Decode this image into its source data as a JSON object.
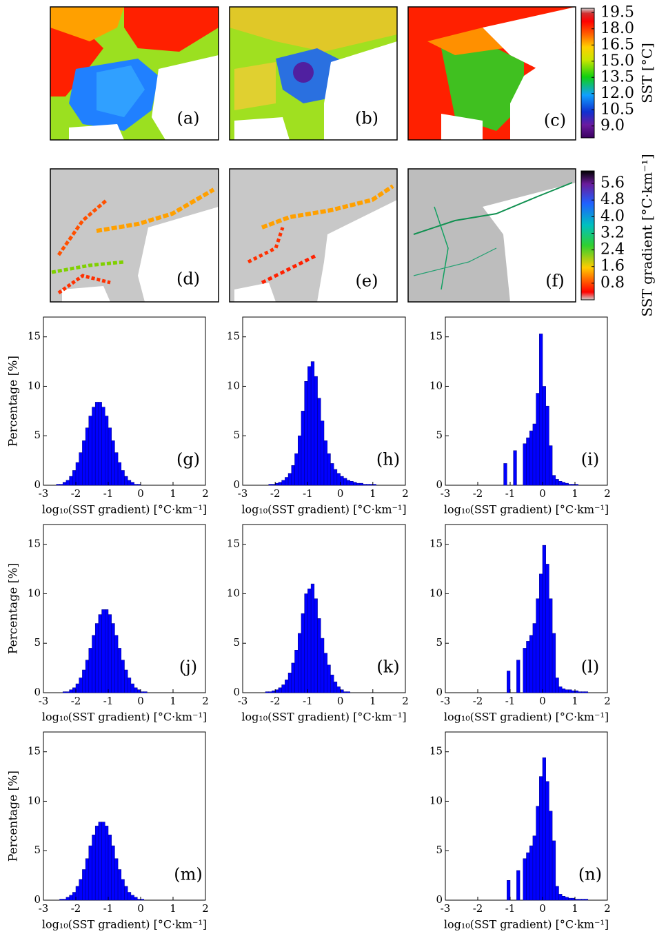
{
  "panels": [
    "(a)",
    "(b)",
    "(c)",
    "(d)",
    "(e)",
    "(f)"
  ],
  "chart_data": [
    {
      "type": "colorbar",
      "label": "SST [°C]",
      "ylim": [
        7.9,
        19.9
      ],
      "yticks": [
        19.5,
        {
          "value": 18,
          "label": "18.0"
        },
        16.5,
        {
          "value": 15,
          "label": "15.0"
        },
        13.5,
        {
          "value": 12,
          "label": "12.0"
        },
        10.5,
        {
          "value": 9,
          "label": "9.0"
        }
      ]
    },
    {
      "type": "colorbar",
      "label": "SST gradient [°C·km⁻¹]",
      "ylim": [
        0,
        6.2
      ],
      "yticks": [
        5.6,
        4.8,
        {
          "value": 4,
          "label": "4.0"
        },
        3.2,
        2.4,
        1.6,
        0.8
      ]
    },
    {
      "type": "histogram",
      "annotation": "(g)",
      "ylabel": "Percentage [%]",
      "xlabel": "log₁₀(SST gradient) [°C·km⁻¹]",
      "color": "#0000ff",
      "xlim": [
        -3,
        2
      ],
      "ylim": [
        0,
        17
      ],
      "xticks": [
        -3,
        -2,
        -1,
        0,
        1,
        2
      ],
      "yticks": [
        0,
        5,
        10,
        15
      ],
      "bins": [
        -2.6,
        -2.5,
        -2.4,
        -2.3,
        -2.2,
        -2.1,
        -2.0,
        -1.9,
        -1.8,
        -1.7,
        -1.6,
        -1.5,
        -1.4,
        -1.3,
        -1.2,
        -1.1,
        -1.0,
        -0.9,
        -0.8,
        -0.7,
        -0.6,
        -0.5,
        -0.4,
        -0.3,
        -0.2,
        -0.1,
        0.0
      ],
      "values": [
        0.1,
        0.1,
        0.3,
        0.5,
        0.9,
        1.5,
        2.3,
        3.3,
        4.5,
        5.8,
        7,
        7.9,
        8.4,
        8.4,
        7.9,
        7,
        5.8,
        4.5,
        3.3,
        2.3,
        1.5,
        0.9,
        0.5,
        0.3,
        0.1,
        0.1
      ]
    },
    {
      "type": "histogram",
      "annotation": "(h)",
      "xlabel": "log₁₀(SST gradient) [°C·km⁻¹]",
      "color": "#0000ff",
      "xlim": [
        -3,
        2
      ],
      "ylim": [
        0,
        17
      ],
      "xticks": [
        -3,
        -2,
        -1,
        0,
        1,
        2
      ],
      "yticks": [
        0,
        5,
        10,
        15
      ],
      "bins": [
        -2.2,
        -2.1,
        -2.0,
        -1.9,
        -1.8,
        -1.7,
        -1.6,
        -1.5,
        -1.4,
        -1.3,
        -1.2,
        -1.1,
        -1.0,
        -0.9,
        -0.8,
        -0.7,
        -0.6,
        -0.5,
        -0.4,
        -0.3,
        -0.2,
        -0.1,
        0.0,
        0.1,
        0.2,
        0.3,
        0.4,
        0.5,
        0.6,
        0.7,
        0.8,
        0.9,
        1.0,
        1.1
      ],
      "values": [
        0.1,
        0.1,
        0.2,
        0.3,
        0.5,
        0.8,
        1.2,
        2,
        3.2,
        5,
        7.5,
        10.5,
        12,
        12.5,
        11,
        8.8,
        6.5,
        4.5,
        3.2,
        2.2,
        1.6,
        1.2,
        0.9,
        0.7,
        0.5,
        0.4,
        0.3,
        0.2,
        0.2,
        0.1,
        0.1,
        0.1,
        0.1
      ]
    },
    {
      "type": "histogram",
      "annotation": "(i)",
      "xlabel": "log₁₀(SST gradient) [°C·km⁻¹]",
      "color": "#0000ff",
      "xlim": [
        -3,
        2
      ],
      "ylim": [
        0,
        17
      ],
      "xticks": [
        -3,
        -2,
        -1,
        0,
        1,
        2
      ],
      "yticks": [
        0,
        5,
        10,
        15
      ],
      "bins": [
        -1.2,
        -1.1,
        -1.0,
        -0.9,
        -0.8,
        -0.7,
        -0.6,
        -0.5,
        -0.4,
        -0.3,
        -0.2,
        -0.1,
        0.0,
        0.1,
        0.2,
        0.3,
        0.4,
        0.5,
        0.6,
        0.7,
        0.8,
        0.9,
        1.0,
        1.1
      ],
      "values": [
        2.2,
        0,
        0,
        3.5,
        0,
        0,
        4.2,
        4.8,
        5.5,
        6.2,
        9.3,
        15.3,
        10,
        8,
        4,
        1,
        0.6,
        0.4,
        0.3,
        0.2,
        0.1,
        0.1,
        0.1
      ]
    },
    {
      "type": "histogram",
      "annotation": "(j)",
      "ylabel": "Percentage [%]",
      "xlabel": "log₁₀(SST gradient) [°C·km⁻¹]",
      "color": "#0000ff",
      "xlim": [
        -3,
        2
      ],
      "ylim": [
        0,
        17
      ],
      "xticks": [
        -3,
        -2,
        -1,
        0,
        1,
        2
      ],
      "yticks": [
        0,
        5,
        10,
        15
      ],
      "bins": [
        -2.4,
        -2.3,
        -2.2,
        -2.1,
        -2.0,
        -1.9,
        -1.8,
        -1.7,
        -1.6,
        -1.5,
        -1.4,
        -1.3,
        -1.2,
        -1.1,
        -1.0,
        -0.9,
        -0.8,
        -0.7,
        -0.6,
        -0.5,
        -0.4,
        -0.3,
        -0.2,
        -0.1,
        0.0,
        0.1,
        0.2
      ],
      "values": [
        0.1,
        0.1,
        0.3,
        0.5,
        0.9,
        1.5,
        2.3,
        3.3,
        4.5,
        5.8,
        7,
        7.9,
        8.4,
        8.4,
        7.9,
        7,
        5.8,
        4.5,
        3.3,
        2.3,
        1.5,
        0.9,
        0.5,
        0.3,
        0.1,
        0.1
      ]
    },
    {
      "type": "histogram",
      "annotation": "(k)",
      "xlabel": "log₁₀(SST gradient) [°C·km⁻¹]",
      "color": "#0000ff",
      "xlim": [
        -3,
        2
      ],
      "ylim": [
        0,
        17
      ],
      "xticks": [
        -3,
        -2,
        -1,
        0,
        1,
        2
      ],
      "yticks": [
        0,
        5,
        10,
        15
      ],
      "bins": [
        -2.3,
        -2.2,
        -2.1,
        -2.0,
        -1.9,
        -1.8,
        -1.7,
        -1.6,
        -1.5,
        -1.4,
        -1.3,
        -1.2,
        -1.1,
        -1.0,
        -0.9,
        -0.8,
        -0.7,
        -0.6,
        -0.5,
        -0.4,
        -0.3,
        -0.2,
        -0.1,
        0.0,
        0.1,
        0.2,
        0.3
      ],
      "values": [
        0.1,
        0.1,
        0.2,
        0.3,
        0.5,
        0.8,
        1.3,
        2,
        3,
        4.3,
        6,
        8,
        10,
        10.5,
        11,
        9.5,
        7.5,
        5.5,
        4,
        2.8,
        1.8,
        1.1,
        0.6,
        0.3,
        0.1,
        0.1
      ]
    },
    {
      "type": "histogram",
      "annotation": "(l)",
      "xlabel": "log₁₀(SST gradient) [°C·km⁻¹]",
      "color": "#0000ff",
      "xlim": [
        -3,
        2
      ],
      "ylim": [
        0,
        17
      ],
      "xticks": [
        -3,
        -2,
        -1,
        0,
        1,
        2
      ],
      "yticks": [
        0,
        5,
        10,
        15
      ],
      "bins": [
        -1.1,
        -1.0,
        -0.9,
        -0.8,
        -0.7,
        -0.6,
        -0.5,
        -0.4,
        -0.3,
        -0.2,
        -0.1,
        0.0,
        0.1,
        0.2,
        0.3,
        0.4,
        0.5,
        0.6,
        0.7,
        0.8,
        0.9,
        1.0,
        1.1,
        1.2,
        1.3,
        1.4
      ],
      "values": [
        2.2,
        0,
        0,
        3.3,
        0,
        4.5,
        5.2,
        5.8,
        7,
        9.5,
        12,
        14.9,
        13,
        9.5,
        6,
        1.5,
        0.6,
        0.4,
        0.3,
        0.3,
        0.2,
        0.2,
        0.1,
        0.1,
        0.1
      ]
    },
    {
      "type": "histogram",
      "annotation": "(m)",
      "ylabel": "Percentage [%]",
      "xlabel": "log₁₀(SST gradient) [°C·km⁻¹]",
      "color": "#0000ff",
      "xlim": [
        -3,
        2
      ],
      "ylim": [
        0,
        17
      ],
      "xticks": [
        -3,
        -2,
        -1,
        0,
        1,
        2
      ],
      "yticks": [
        0,
        5,
        10,
        15
      ],
      "bins": [
        -2.5,
        -2.4,
        -2.3,
        -2.2,
        -2.1,
        -2.0,
        -1.9,
        -1.8,
        -1.7,
        -1.6,
        -1.5,
        -1.4,
        -1.3,
        -1.2,
        -1.1,
        -1.0,
        -0.9,
        -0.8,
        -0.7,
        -0.6,
        -0.5,
        -0.4,
        -0.3,
        -0.2,
        -0.1,
        0.0,
        0.1
      ],
      "values": [
        0.1,
        0.1,
        0.3,
        0.5,
        0.8,
        1.4,
        2.1,
        3.1,
        4.2,
        5.5,
        6.6,
        7.5,
        7.9,
        7.9,
        7.5,
        6.6,
        5.5,
        4.2,
        3.1,
        2.1,
        1.4,
        0.8,
        0.5,
        0.3,
        0.1,
        0.1
      ]
    },
    {
      "type": "histogram",
      "annotation": "(n)",
      "xlabel": "log₁₀(SST gradient) [°C·km⁻¹]",
      "color": "#0000ff",
      "xlim": [
        -3,
        2
      ],
      "ylim": [
        0,
        17
      ],
      "xticks": [
        -3,
        -2,
        -1,
        0,
        1,
        2
      ],
      "yticks": [
        0,
        5,
        10,
        15
      ],
      "bins": [
        -1.1,
        -1.0,
        -0.9,
        -0.8,
        -0.7,
        -0.6,
        -0.5,
        -0.4,
        -0.3,
        -0.2,
        -0.1,
        0.0,
        0.1,
        0.2,
        0.3,
        0.4,
        0.5,
        0.6,
        0.7,
        0.8,
        0.9,
        1.0,
        1.1,
        1.2,
        1.3,
        1.4
      ],
      "values": [
        2,
        0,
        0,
        3,
        0,
        4.2,
        4.8,
        5.5,
        6.5,
        9.5,
        12.5,
        14.4,
        12,
        9,
        6,
        1.4,
        0.6,
        0.4,
        0.3,
        0.2,
        0.2,
        0.1,
        0.1,
        0.1,
        0.1
      ]
    }
  ]
}
